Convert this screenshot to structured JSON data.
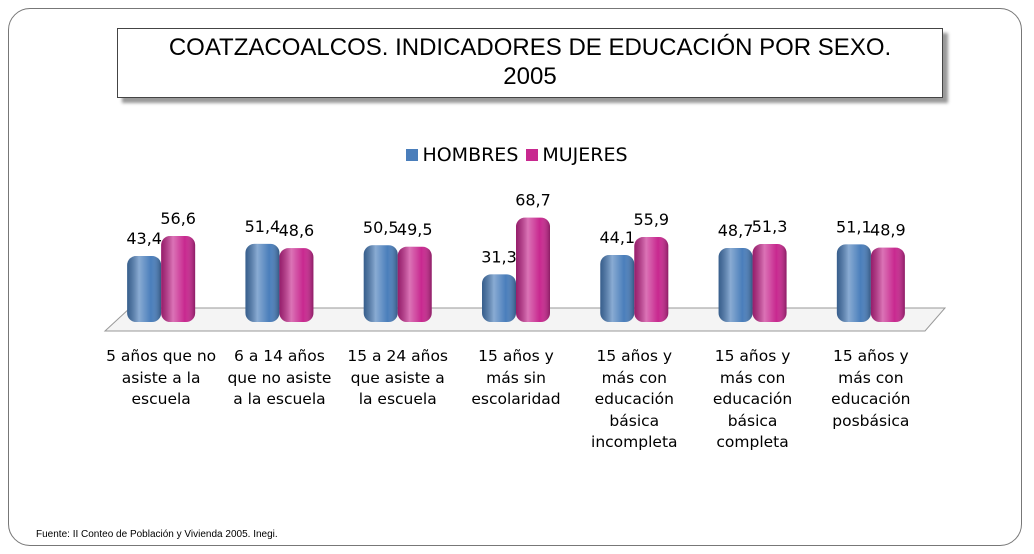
{
  "chart_data": {
    "type": "bar",
    "title": "COATZACOALCOS. INDICADORES DE EDUCACIÓN POR SEXO. 2005",
    "categories": [
      "5 años que no asiste a la escuela",
      "6 a 14 años que no asiste a la escuela",
      "15 a 24 años que asiste a la escuela",
      "15 años y más sin escolaridad",
      "15 años y más con educación básica incompleta",
      "15 años y más con educación básica completa",
      "15 años y más con educación posbásica"
    ],
    "series": [
      {
        "name": "HOMBRES",
        "color": "#4a7ebb",
        "values": [
          43.4,
          51.4,
          50.5,
          31.3,
          44.1,
          48.7,
          51.1
        ],
        "value_labels": [
          "43,4",
          "51,4",
          "50,5",
          "31,3",
          "44,1",
          "48,7",
          "51,1"
        ]
      },
      {
        "name": "MUJERES",
        "color": "#c8288f",
        "values": [
          56.6,
          48.6,
          49.5,
          68.7,
          55.9,
          51.3,
          48.9
        ],
        "value_labels": [
          "56,6",
          "48,6",
          "49,5",
          "68,7",
          "55,9",
          "51,3",
          "48,9"
        ]
      }
    ],
    "legend": "top",
    "source": "Fuente: II Conteo de Población y Vivienda 2005. Inegi."
  }
}
